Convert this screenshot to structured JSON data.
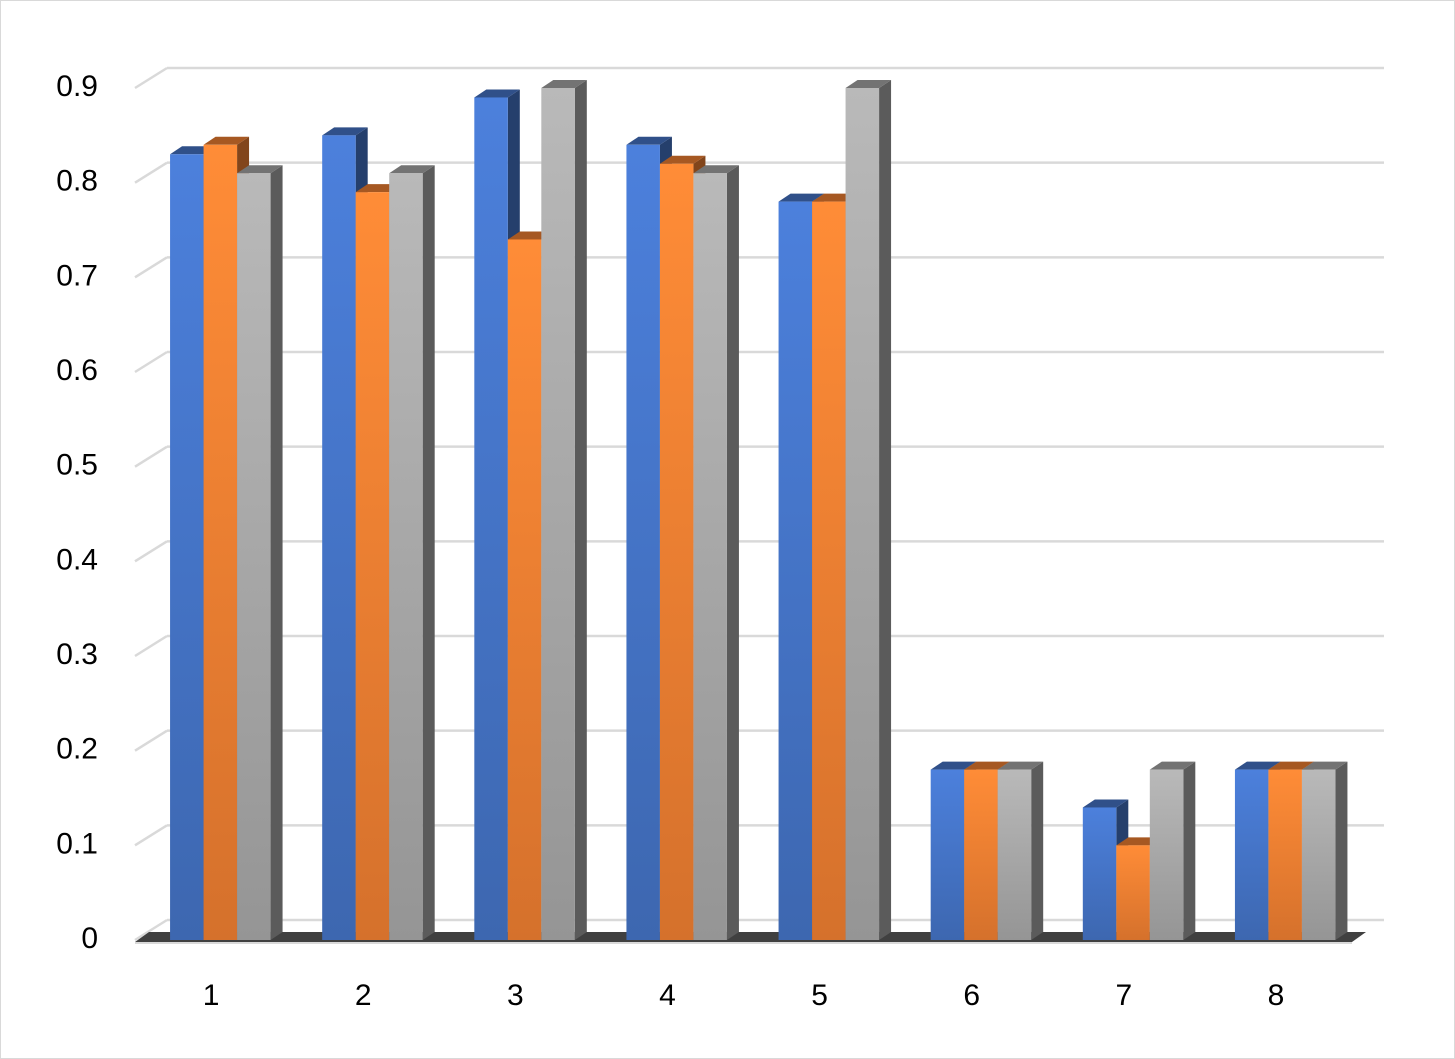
{
  "chart_data": {
    "type": "bar3d",
    "categories": [
      "1",
      "2",
      "3",
      "4",
      "5",
      "6",
      "7",
      "8"
    ],
    "series": [
      {
        "color": "#4472c4",
        "values": [
          0.83,
          0.85,
          0.89,
          0.84,
          0.78,
          0.18,
          0.14,
          0.18
        ]
      },
      {
        "color": "#ed7d31",
        "values": [
          0.84,
          0.79,
          0.74,
          0.82,
          0.78,
          0.18,
          0.1,
          0.18
        ]
      },
      {
        "color": "#a5a5a5",
        "values": [
          0.81,
          0.81,
          0.9,
          0.81,
          0.9,
          0.18,
          0.18,
          0.18
        ]
      }
    ],
    "ylim": [
      0,
      0.9
    ],
    "yticks": [
      0,
      0.1,
      0.2,
      0.3,
      0.4,
      0.5,
      0.6,
      0.7,
      0.8,
      0.9
    ],
    "grid": true
  }
}
